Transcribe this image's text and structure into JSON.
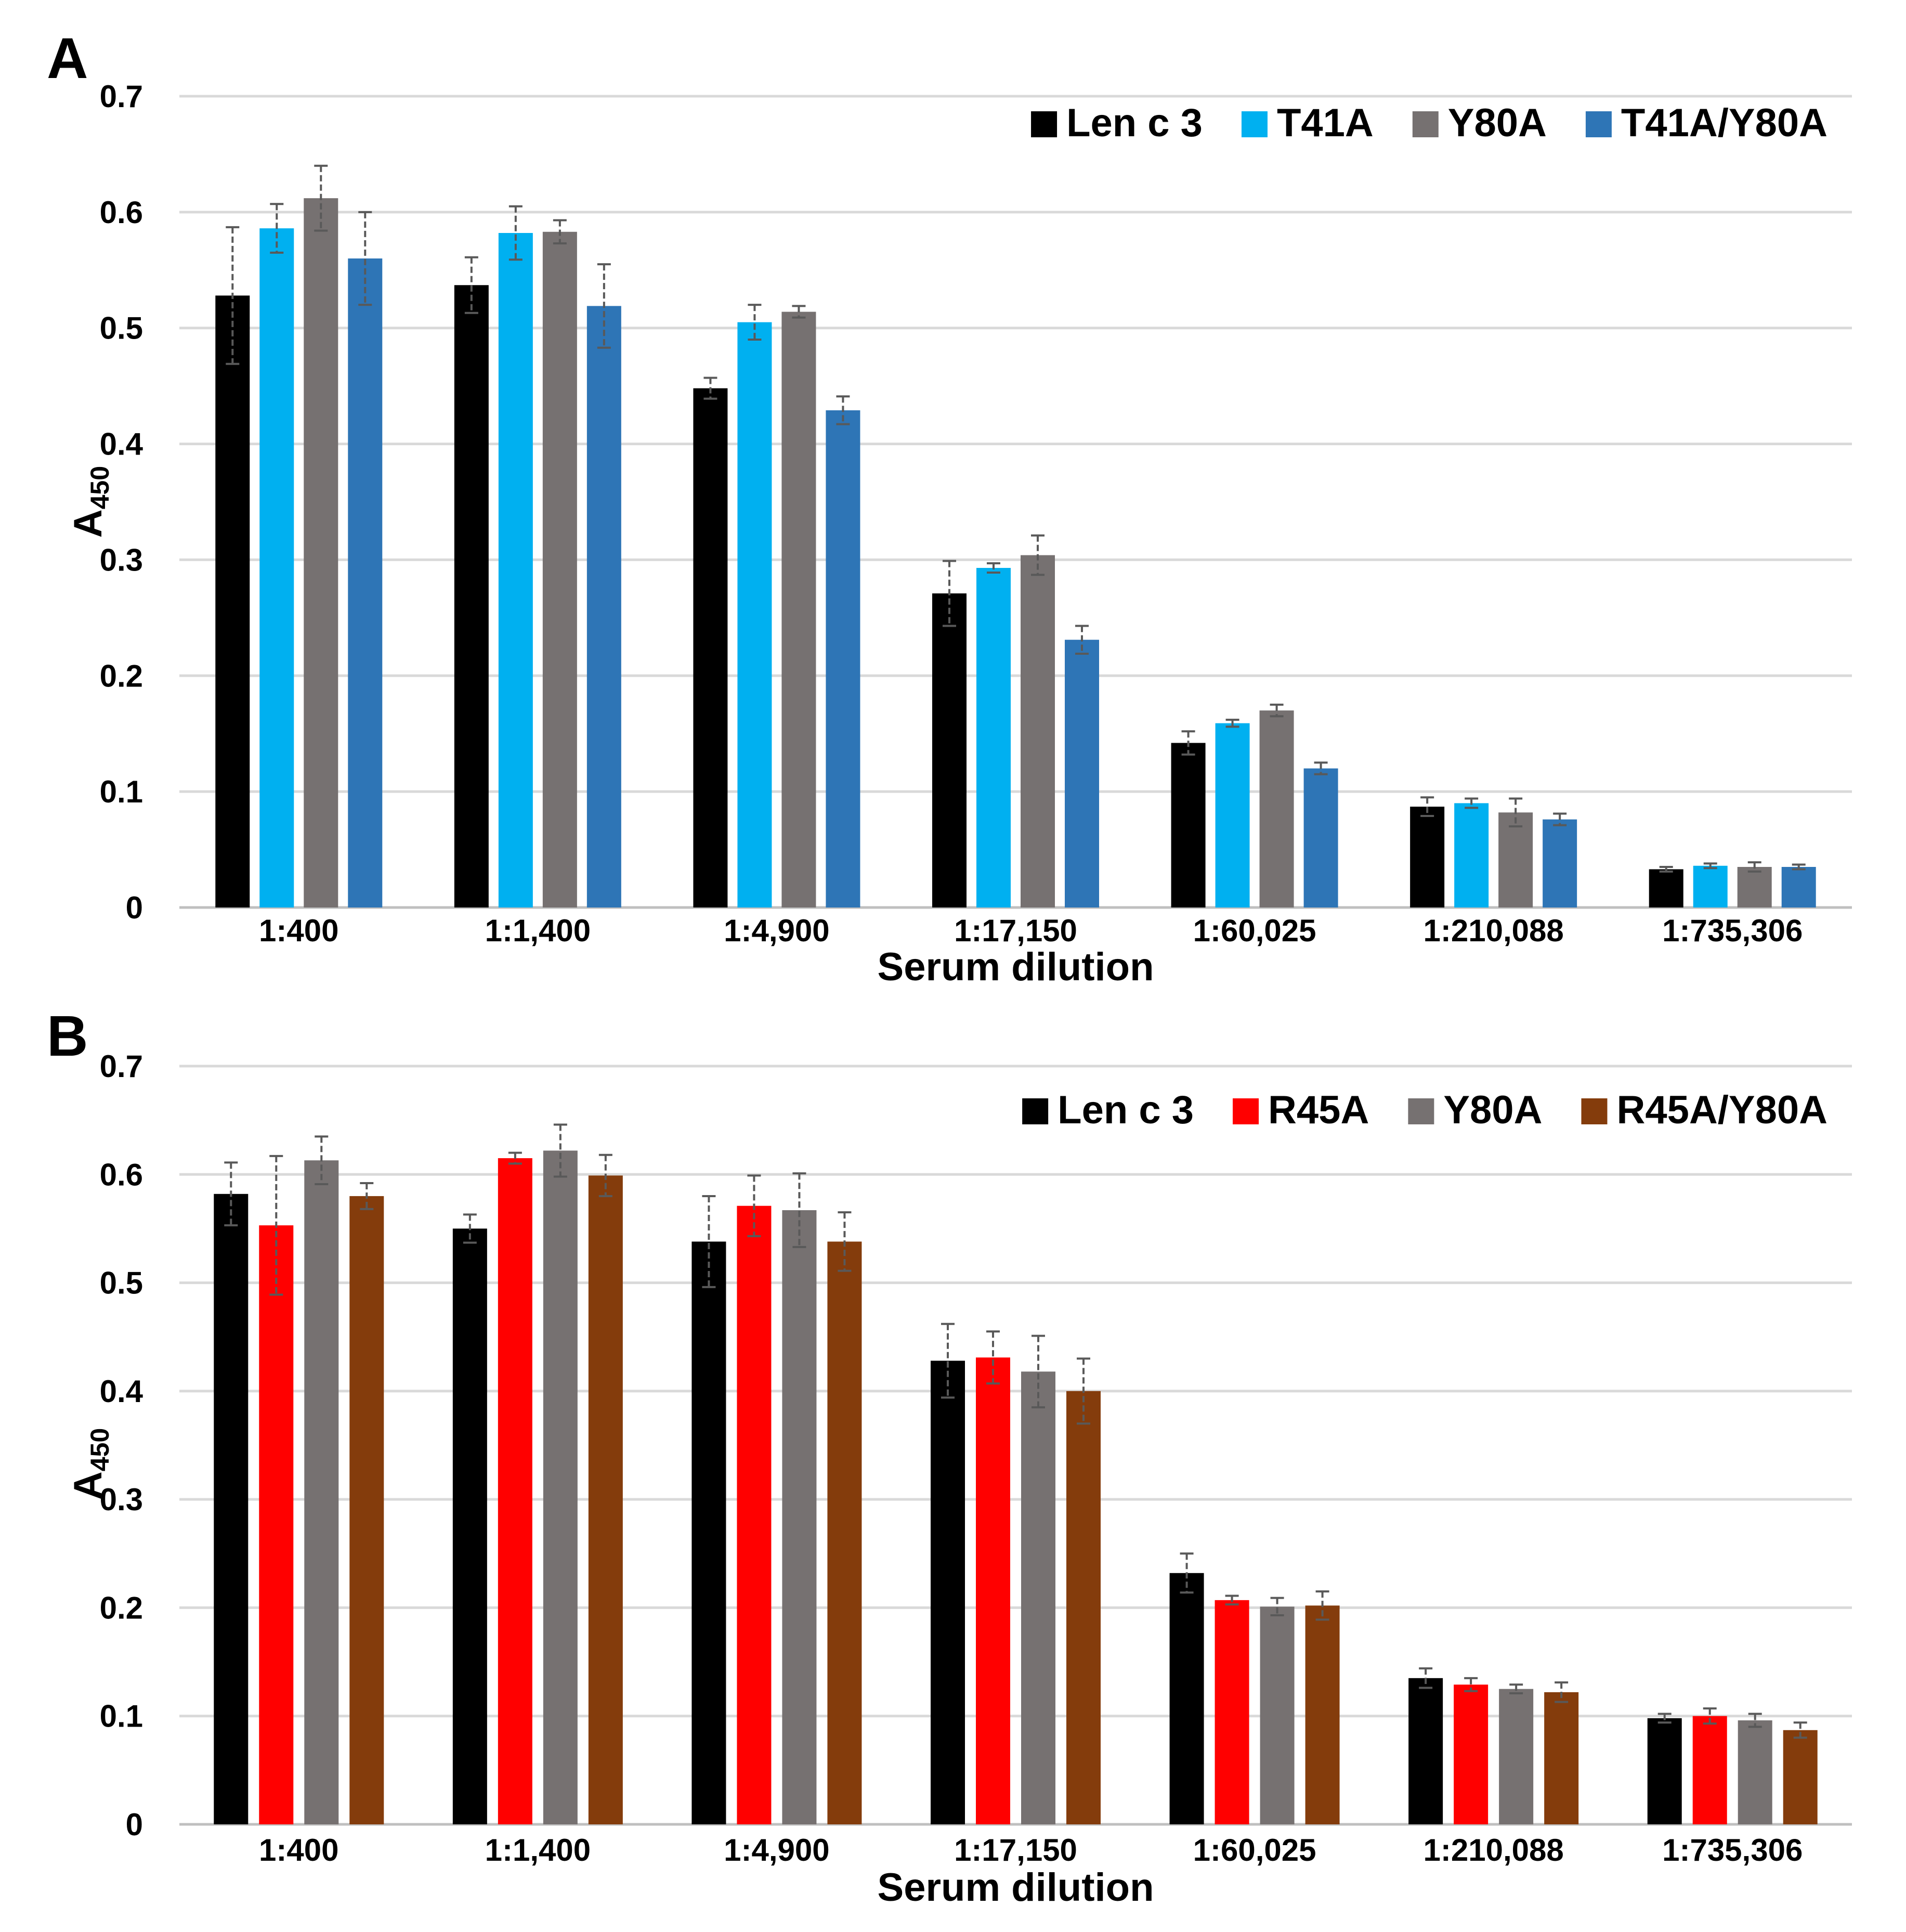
{
  "chart_data": [
    {
      "type": "bar",
      "panel_label": "A",
      "categories": [
        "1:400",
        "1:1,400",
        "1:4,900",
        "1:17,150",
        "1:60,025",
        "1:210,088",
        "1:735,306"
      ],
      "series": [
        {
          "name": "Len c 3",
          "color": "#000000",
          "values": [
            0.528,
            0.537,
            0.448,
            0.271,
            0.142,
            0.087,
            0.033
          ],
          "errors": [
            0.059,
            0.024,
            0.009,
            0.028,
            0.01,
            0.008,
            0.002
          ]
        },
        {
          "name": "T41A",
          "color": "#00B0F0",
          "values": [
            0.586,
            0.582,
            0.505,
            0.293,
            0.159,
            0.09,
            0.036
          ],
          "errors": [
            0.021,
            0.023,
            0.015,
            0.004,
            0.003,
            0.004,
            0.002
          ]
        },
        {
          "name": "Y80A",
          "color": "#767171",
          "values": [
            0.612,
            0.583,
            0.514,
            0.304,
            0.17,
            0.082,
            0.035
          ],
          "errors": [
            0.028,
            0.01,
            0.005,
            0.017,
            0.005,
            0.012,
            0.004
          ]
        },
        {
          "name": "T41A/Y80A",
          "color": "#2E75B6",
          "values": [
            0.56,
            0.519,
            0.429,
            0.231,
            0.12,
            0.076,
            0.035
          ],
          "errors": [
            0.04,
            0.036,
            0.012,
            0.012,
            0.005,
            0.005,
            0.002
          ]
        }
      ],
      "title": "",
      "xlabel": "Serum dilution",
      "ylabel_main": "A",
      "ylabel_sub": "450",
      "ylim": [
        0,
        0.7
      ],
      "yticks": [
        0,
        0.1,
        0.2,
        0.3,
        0.4,
        0.5,
        0.6,
        0.7
      ],
      "ytick_labels": [
        "0",
        "0.1",
        "0.2",
        "0.3",
        "0.4",
        "0.5",
        "0.6",
        "0.7"
      ],
      "grid": true,
      "legend_position": "top-right"
    },
    {
      "type": "bar",
      "panel_label": "B",
      "categories": [
        "1:400",
        "1:1,400",
        "1:4,900",
        "1:17,150",
        "1:60,025",
        "1:210,088",
        "1:735,306"
      ],
      "series": [
        {
          "name": "Len c 3",
          "color": "#000000",
          "values": [
            0.582,
            0.55,
            0.538,
            0.428,
            0.232,
            0.135,
            0.098
          ],
          "errors": [
            0.029,
            0.013,
            0.042,
            0.034,
            0.018,
            0.009,
            0.004
          ]
        },
        {
          "name": "R45A",
          "color": "#FF0000",
          "values": [
            0.553,
            0.615,
            0.571,
            0.431,
            0.207,
            0.129,
            0.1
          ],
          "errors": [
            0.064,
            0.005,
            0.028,
            0.024,
            0.004,
            0.006,
            0.007
          ]
        },
        {
          "name": "Y80A",
          "color": "#767171",
          "values": [
            0.613,
            0.622,
            0.567,
            0.418,
            0.201,
            0.125,
            0.096
          ],
          "errors": [
            0.022,
            0.024,
            0.034,
            0.033,
            0.008,
            0.004,
            0.006
          ]
        },
        {
          "name": "R45A/Y80A",
          "color": "#843C0C",
          "values": [
            0.58,
            0.599,
            0.538,
            0.4,
            0.202,
            0.122,
            0.087
          ],
          "errors": [
            0.012,
            0.019,
            0.027,
            0.03,
            0.013,
            0.009,
            0.007
          ]
        }
      ],
      "title": "",
      "xlabel": "Serum dilution",
      "ylabel_main": "A",
      "ylabel_sub": "450",
      "ylim": [
        0,
        0.7
      ],
      "yticks": [
        0,
        0.1,
        0.2,
        0.3,
        0.4,
        0.5,
        0.6,
        0.7
      ],
      "ytick_labels": [
        "0",
        "0.1",
        "0.2",
        "0.3",
        "0.4",
        "0.5",
        "0.6",
        "0.7"
      ],
      "grid": true,
      "legend_position": "top-right"
    }
  ]
}
